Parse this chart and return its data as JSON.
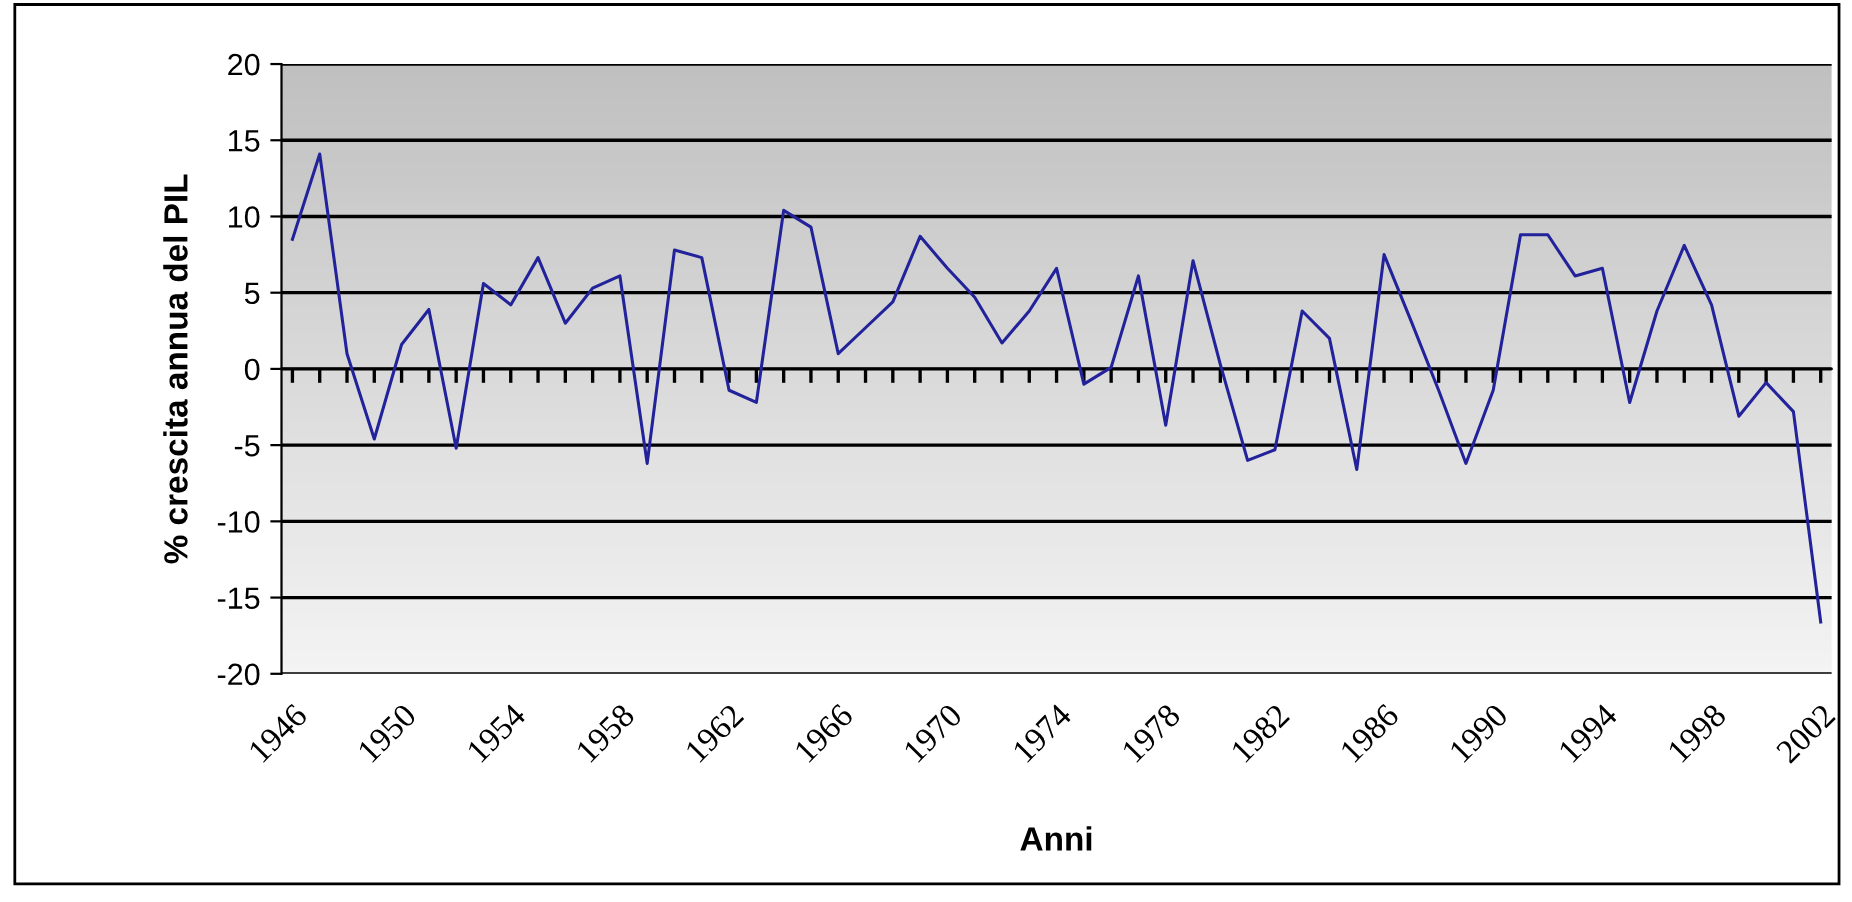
{
  "chart_data": {
    "type": "line",
    "xlabel": "Anni",
    "ylabel": "% crescita annua del PIL",
    "categories": [
      "1946",
      null,
      null,
      null,
      "1950",
      null,
      null,
      null,
      "1954",
      null,
      null,
      null,
      "1958",
      null,
      null,
      null,
      "1962",
      null,
      null,
      null,
      "1966",
      null,
      null,
      null,
      "1970",
      null,
      null,
      null,
      "1974",
      null,
      null,
      null,
      "1978",
      null,
      null,
      null,
      "1982",
      null,
      null,
      null,
      "1986",
      null,
      null,
      null,
      "1990",
      null,
      null,
      null,
      "1994",
      null,
      null,
      null,
      "1998",
      null,
      null,
      null,
      "2002"
    ],
    "series": [
      {
        "color": "#22229a",
        "values": [
          8.5,
          14.1,
          1.0,
          -4.6,
          1.6,
          3.9,
          -5.2,
          5.6,
          4.2,
          7.3,
          3.0,
          5.3,
          6.1,
          -6.2,
          7.8,
          7.3,
          -1.4,
          -2.2,
          10.4,
          9.3,
          1.0,
          2.7,
          4.4,
          8.7,
          6.6,
          4.7,
          1.7,
          3.8,
          6.6,
          -1.0,
          0.1,
          6.1,
          -3.7,
          7.1,
          0.3,
          -6.0,
          -5.3,
          3.8,
          2.0,
          -6.6,
          7.5,
          3.1,
          -1.4,
          -6.2,
          -1.4,
          8.8,
          8.8,
          6.1,
          6.6,
          -2.2,
          3.8,
          8.1,
          4.2,
          -3.1,
          -0.9,
          -2.8,
          -16.6
        ]
      }
    ],
    "ylim": [
      -20,
      20
    ],
    "yticks": [
      -20,
      -15,
      -10,
      -5,
      0,
      5,
      10,
      15,
      20
    ],
    "grid": "y",
    "legend": false,
    "marker": "none",
    "line_style": "solid"
  }
}
